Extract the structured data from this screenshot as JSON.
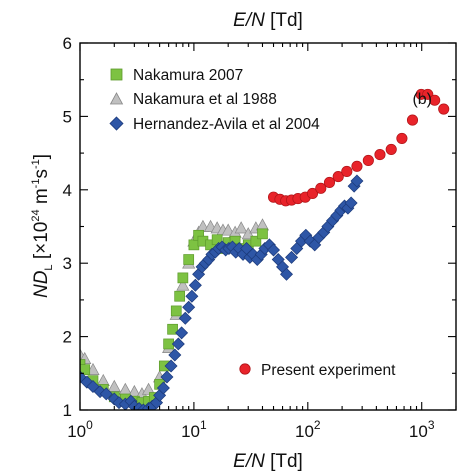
{
  "chart_data": {
    "type": "scatter",
    "x_scale": "log",
    "y_scale": "linear",
    "xlim": [
      1,
      2000
    ],
    "ylim": [
      1,
      6
    ],
    "x_ticks": [
      {
        "value": 1,
        "base": "10",
        "exp": "0"
      },
      {
        "value": 10,
        "base": "10",
        "exp": "1"
      },
      {
        "value": 100,
        "base": "10",
        "exp": "2"
      },
      {
        "value": 1000,
        "base": "10",
        "exp": "3"
      }
    ],
    "y_ticks": [
      "1",
      "2",
      "3",
      "4",
      "5",
      "6"
    ],
    "xlabel": {
      "italic": "E/N",
      "rest": " [Td]"
    },
    "top_xlabel": {
      "italic": "E/N",
      "rest": " [Td]"
    },
    "ylabel": {
      "nd": "ND",
      "sub": "L",
      "pre": " [×10",
      "sup24": "24",
      "mid": " m",
      "sup1": "-1",
      "mid2": "s",
      "sup2": "-1",
      "post": "]"
    },
    "panel_label": "(b)",
    "legend_top": [
      "Nakamura 2007",
      "Nakamura et al 1988",
      "Hernandez-Avila et al 2004"
    ],
    "legend_bottom": "Present experiment",
    "series": [
      {
        "name": "Nakamura 2007",
        "marker": "square",
        "color": "#7dc242",
        "points": [
          [
            1.0,
            1.62
          ],
          [
            1.1,
            1.55
          ],
          [
            1.3,
            1.4
          ],
          [
            1.6,
            1.28
          ],
          [
            2.0,
            1.18
          ],
          [
            2.5,
            1.15
          ],
          [
            3.0,
            1.12
          ],
          [
            3.5,
            1.1
          ],
          [
            4.0,
            1.12
          ],
          [
            4.5,
            1.17
          ],
          [
            5.0,
            1.35
          ],
          [
            5.5,
            1.6
          ],
          [
            6.0,
            1.9
          ],
          [
            6.5,
            2.1
          ],
          [
            7.0,
            2.35
          ],
          [
            7.5,
            2.55
          ],
          [
            8.0,
            2.8
          ],
          [
            9.0,
            3.05
          ],
          [
            10.0,
            3.25
          ],
          [
            11.0,
            3.38
          ],
          [
            12.0,
            3.3
          ],
          [
            14.0,
            3.25
          ],
          [
            16.0,
            3.32
          ],
          [
            18.0,
            3.2
          ],
          [
            20.0,
            3.28
          ],
          [
            23.0,
            3.3
          ],
          [
            26.0,
            3.2
          ],
          [
            30.0,
            3.25
          ],
          [
            35.0,
            3.3
          ],
          [
            40.0,
            3.4
          ]
        ]
      },
      {
        "name": "Nakamura et al 1988",
        "marker": "triangle",
        "color": "#c0c0c0",
        "points": [
          [
            1.0,
            1.75
          ],
          [
            1.1,
            1.7
          ],
          [
            1.3,
            1.55
          ],
          [
            1.6,
            1.4
          ],
          [
            2.0,
            1.32
          ],
          [
            2.5,
            1.28
          ],
          [
            3.0,
            1.25
          ],
          [
            3.5,
            1.22
          ],
          [
            4.0,
            1.28
          ],
          [
            5.0,
            1.45
          ],
          [
            6.0,
            1.85
          ],
          [
            7.0,
            2.3
          ],
          [
            8.0,
            2.7
          ],
          [
            9.0,
            3.0
          ],
          [
            10.0,
            3.3
          ],
          [
            11.0,
            3.42
          ],
          [
            12.0,
            3.5
          ],
          [
            14.0,
            3.5
          ],
          [
            16.0,
            3.48
          ],
          [
            18.0,
            3.45
          ],
          [
            20.0,
            3.45
          ],
          [
            23.0,
            3.42
          ],
          [
            26.0,
            3.48
          ],
          [
            30.0,
            3.4
          ],
          [
            35.0,
            3.48
          ],
          [
            40.0,
            3.52
          ]
        ]
      },
      {
        "name": "Hernandez-Avila et al 2004",
        "marker": "diamond",
        "color": "#2e56a6",
        "points": [
          [
            1.0,
            1.45
          ],
          [
            1.15,
            1.38
          ],
          [
            1.3,
            1.32
          ],
          [
            1.5,
            1.25
          ],
          [
            1.7,
            1.22
          ],
          [
            2.0,
            1.15
          ],
          [
            2.2,
            1.1
          ],
          [
            2.5,
            1.08
          ],
          [
            2.8,
            1.12
          ],
          [
            3.0,
            1.05
          ],
          [
            3.3,
            1.02
          ],
          [
            3.6,
            1.0
          ],
          [
            4.0,
            1.02
          ],
          [
            4.3,
            1.05
          ],
          [
            4.7,
            1.1
          ],
          [
            5.0,
            1.2
          ],
          [
            5.4,
            1.3
          ],
          [
            5.8,
            1.45
          ],
          [
            6.3,
            1.6
          ],
          [
            6.8,
            1.75
          ],
          [
            7.3,
            1.9
          ],
          [
            7.8,
            2.05
          ],
          [
            8.4,
            2.25
          ],
          [
            9.0,
            2.4
          ],
          [
            9.6,
            2.55
          ],
          [
            10.3,
            2.7
          ],
          [
            11.0,
            2.85
          ],
          [
            11.8,
            2.95
          ],
          [
            12.6,
            3.0
          ],
          [
            13.5,
            3.05
          ],
          [
            14.4,
            3.12
          ],
          [
            15.4,
            3.15
          ],
          [
            16.5,
            3.2
          ],
          [
            17.7,
            3.22
          ],
          [
            19.0,
            3.18
          ],
          [
            20.3,
            3.2
          ],
          [
            21.8,
            3.22
          ],
          [
            23.3,
            3.15
          ],
          [
            25.0,
            3.2
          ],
          [
            27.0,
            3.12
          ],
          [
            29.0,
            3.2
          ],
          [
            31.0,
            3.08
          ],
          [
            33.0,
            3.12
          ],
          [
            36.0,
            3.05
          ],
          [
            39.0,
            3.12
          ],
          [
            42.0,
            3.2
          ],
          [
            46.0,
            3.25
          ],
          [
            50.0,
            3.18
          ],
          [
            55.0,
            3.05
          ],
          [
            60.0,
            2.95
          ],
          [
            65.0,
            2.85
          ],
          [
            72.0,
            3.08
          ],
          [
            80.0,
            3.2
          ],
          [
            88.0,
            3.3
          ],
          [
            96.0,
            3.38
          ],
          [
            105.0,
            3.3
          ],
          [
            115.0,
            3.25
          ],
          [
            125.0,
            3.35
          ],
          [
            138.0,
            3.42
          ],
          [
            150.0,
            3.5
          ],
          [
            165.0,
            3.58
          ],
          [
            180.0,
            3.65
          ],
          [
            195.0,
            3.72
          ],
          [
            210.0,
            3.78
          ],
          [
            225.0,
            3.75
          ],
          [
            240.0,
            3.82
          ],
          [
            255.0,
            4.05
          ],
          [
            270.0,
            4.12
          ]
        ]
      },
      {
        "name": "Present experiment",
        "marker": "circle",
        "color": "#e8232a",
        "points": [
          [
            50,
            3.9
          ],
          [
            57,
            3.87
          ],
          [
            64,
            3.85
          ],
          [
            72,
            3.86
          ],
          [
            82,
            3.88
          ],
          [
            95,
            3.9
          ],
          [
            110,
            3.95
          ],
          [
            130,
            4.02
          ],
          [
            155,
            4.1
          ],
          [
            185,
            4.18
          ],
          [
            220,
            4.25
          ],
          [
            270,
            4.32
          ],
          [
            340,
            4.4
          ],
          [
            430,
            4.48
          ],
          [
            540,
            4.55
          ],
          [
            670,
            4.7
          ],
          [
            830,
            4.95
          ],
          [
            990,
            5.3
          ],
          [
            1130,
            5.3
          ],
          [
            1300,
            5.22
          ],
          [
            1560,
            5.1
          ]
        ]
      }
    ]
  }
}
